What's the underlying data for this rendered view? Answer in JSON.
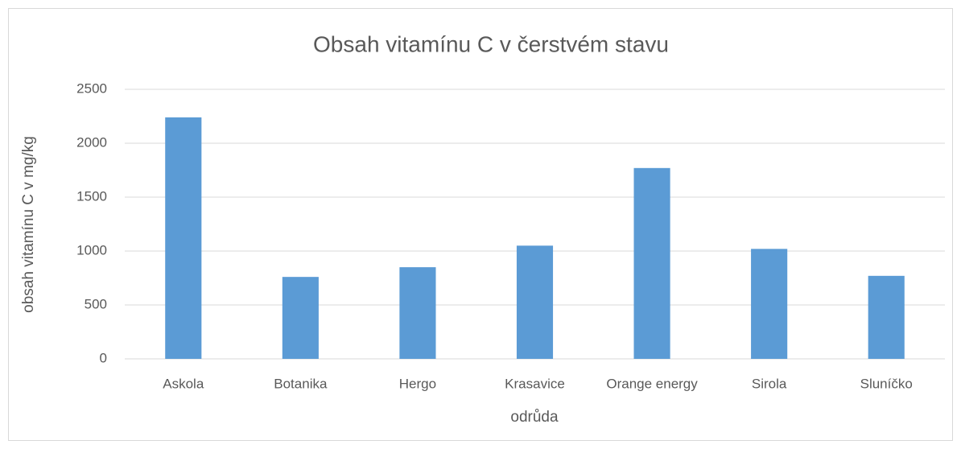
{
  "chart_data": {
    "type": "bar",
    "title": "Obsah vitamínu C v čerstvém stavu",
    "x_label": "odrůda",
    "y_label": "obsah vitamínu C v mg/kg",
    "categories": [
      "Askola",
      "Botanika",
      "Hergo",
      "Krasavice",
      "Orange energy",
      "Sirola",
      "Sluníčko"
    ],
    "values": [
      2240,
      760,
      850,
      1050,
      1770,
      1020,
      770
    ],
    "color": "#5b9bd5",
    "ylim": [
      0,
      2500
    ],
    "yticks": [
      0,
      500,
      1000,
      1500,
      2000,
      2500
    ],
    "grid": true
  }
}
